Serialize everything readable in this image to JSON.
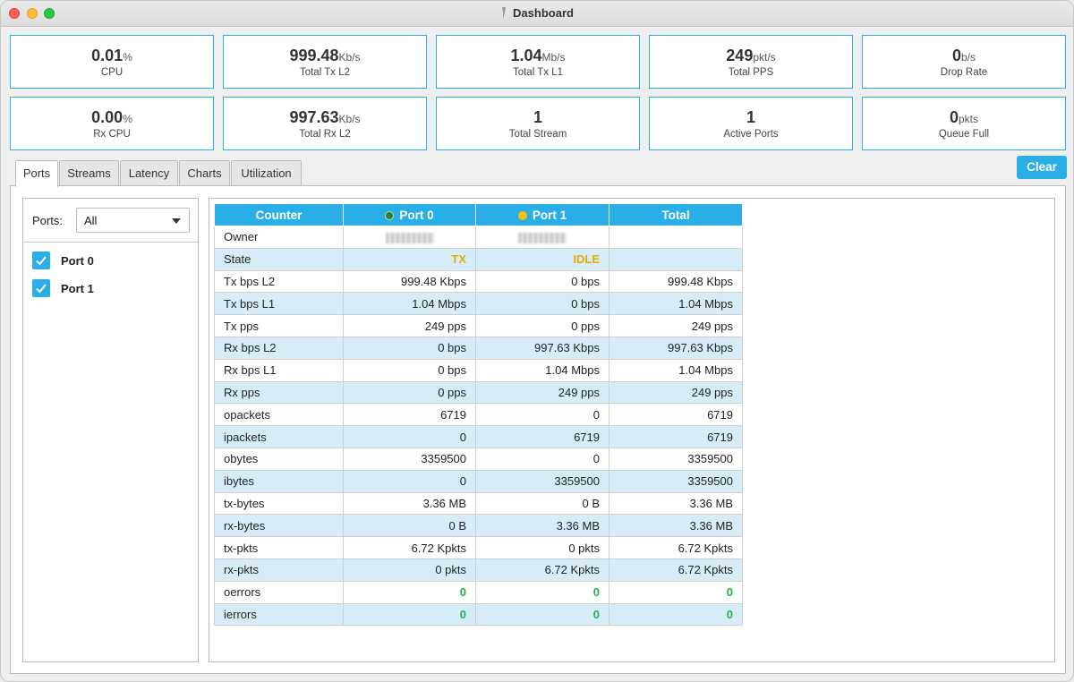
{
  "window": {
    "title": "Dashboard"
  },
  "stats": [
    {
      "value": "0.01",
      "unit": "%",
      "label": "CPU"
    },
    {
      "value": "999.48",
      "unit": "Kb/s",
      "label": "Total Tx L2"
    },
    {
      "value": "1.04",
      "unit": "Mb/s",
      "label": "Total Tx L1"
    },
    {
      "value": "249",
      "unit": "pkt/s",
      "label": "Total PPS"
    },
    {
      "value": "0",
      "unit": "b/s",
      "label": "Drop Rate"
    },
    {
      "value": "0.00",
      "unit": "%",
      "label": "Rx CPU"
    },
    {
      "value": "997.63",
      "unit": "Kb/s",
      "label": "Total Rx L2"
    },
    {
      "value": "1",
      "unit": "",
      "label": "Total Stream"
    },
    {
      "value": "1",
      "unit": "",
      "label": "Active Ports"
    },
    {
      "value": "0",
      "unit": "pkts",
      "label": "Queue Full"
    }
  ],
  "tabs": [
    "Ports",
    "Streams",
    "Latency",
    "Charts",
    "Utilization"
  ],
  "active_tab": "Ports",
  "clear_label": "Clear",
  "sidebar": {
    "ports_label": "Ports:",
    "select_value": "All",
    "ports": [
      {
        "label": "Port 0",
        "checked": true
      },
      {
        "label": "Port 1",
        "checked": true
      }
    ]
  },
  "table": {
    "headers": [
      "Counter",
      "Port 0",
      "Port 1",
      "Total"
    ],
    "port0_dot_color": "#2e7d32",
    "port1_dot_color": "#f5c200",
    "rows": [
      [
        "Owner",
        "",
        "",
        ""
      ],
      [
        "State",
        "TX",
        "IDLE",
        ""
      ],
      [
        "Tx bps L2",
        "999.48 Kbps",
        "0 bps",
        "999.48 Kbps"
      ],
      [
        "Tx bps L1",
        "1.04 Mbps",
        "0 bps",
        "1.04 Mbps"
      ],
      [
        "Tx pps",
        "249 pps",
        "0 pps",
        "249 pps"
      ],
      [
        "Rx bps L2",
        "0 bps",
        "997.63 Kbps",
        "997.63 Kbps"
      ],
      [
        "Rx bps L1",
        "0 bps",
        "1.04 Mbps",
        "1.04 Mbps"
      ],
      [
        "Rx pps",
        "0 pps",
        "249 pps",
        "249 pps"
      ],
      [
        "opackets",
        "6719",
        "0",
        "6719"
      ],
      [
        "ipackets",
        "0",
        "6719",
        "6719"
      ],
      [
        "obytes",
        "3359500",
        "0",
        "3359500"
      ],
      [
        "ibytes",
        "0",
        "3359500",
        "3359500"
      ],
      [
        "tx-bytes",
        "3.36 MB",
        "0 B",
        "3.36 MB"
      ],
      [
        "rx-bytes",
        "0 B",
        "3.36 MB",
        "3.36 MB"
      ],
      [
        "tx-pkts",
        "6.72 Kpkts",
        "0 pkts",
        "6.72 Kpkts"
      ],
      [
        "rx-pkts",
        "0 pkts",
        "6.72 Kpkts",
        "6.72 Kpkts"
      ],
      [
        "oerrors",
        "0",
        "0",
        "0"
      ],
      [
        "ierrors",
        "0",
        "0",
        "0"
      ]
    ]
  }
}
